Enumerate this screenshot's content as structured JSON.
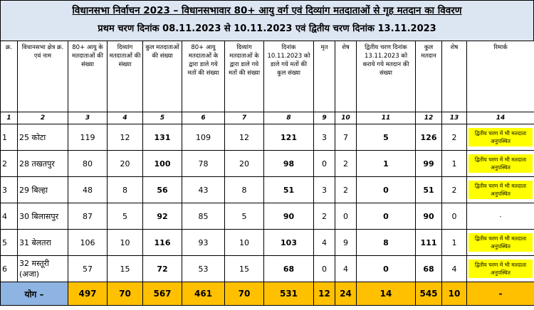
{
  "header": {
    "title": "विधानसभा निर्वाचन 2023 – विधानसभावार 80+ आयु वर्ग एवं दिव्यांग मतदाताओं से गृह मतदान का विवरण",
    "subtitle": "प्रथम चरण दिनांक 08.11.2023 से 10.11.2023 एवं द्वितीय चरण दिनांक 13.11.2023"
  },
  "table": {
    "columns": [
      "क्र.",
      "विधानसभा क्षेत्र क्र. एवं नाम",
      "80+ आयु के मतदाताओं की संख्या",
      "दिव्यांग मतदाताओं की संख्या",
      "कुल मतदाताओं की संख्या",
      "80+ आयु मतदाताओं के द्वारा डाले गये मतों की संख्या",
      "दिव्यांग मतदाताओं के द्वारा डाले गये मतों की संख्या",
      "दिनांक 10.11.2023 को डाले गये मतों की कुल संख्या",
      "मृत",
      "शेष",
      "द्वितीय चरण दिनांक 13.11.2023 को कराये गये मतदान की संख्या",
      "कुल मतदान",
      "शेष",
      "रिमार्क"
    ],
    "column_numbers": [
      1,
      2,
      3,
      4,
      5,
      6,
      7,
      8,
      9,
      10,
      11,
      12,
      13,
      14
    ],
    "rows": [
      {
        "cells": [
          1,
          "25 कोटा",
          119,
          12,
          131,
          109,
          12,
          121,
          3,
          7,
          5,
          126,
          2,
          "द्वितीय चरण में भी मतदाता अनुपस्थित"
        ],
        "remark_fill": "#ffff00"
      },
      {
        "cells": [
          2,
          "28 तखतपुर",
          80,
          20,
          100,
          78,
          20,
          98,
          0,
          2,
          1,
          99,
          1,
          "द्वितीय चरण में भी मतदाता अनुपस्थित"
        ],
        "remark_fill": "#ffff00"
      },
      {
        "cells": [
          3,
          "29 बिल्हा",
          48,
          8,
          56,
          43,
          8,
          51,
          3,
          2,
          0,
          51,
          2,
          "द्वितीय चरण में भी मतदाता अनुपस्थित"
        ],
        "remark_fill": "#ffff00"
      },
      {
        "cells": [
          4,
          "30 बिलासपुर",
          87,
          5,
          92,
          85,
          5,
          90,
          2,
          0,
          0,
          90,
          0,
          "-"
        ],
        "remark_fill": "#ffffff"
      },
      {
        "cells": [
          5,
          "31 बेलतरा",
          106,
          10,
          116,
          93,
          10,
          103,
          4,
          9,
          8,
          111,
          1,
          "द्वितीय चरण में भी मतदाता अनुपस्थित"
        ],
        "remark_fill": "#ffff00"
      },
      {
        "cells": [
          6,
          "32 मस्तूरी (अजा)",
          57,
          15,
          72,
          53,
          15,
          68,
          0,
          4,
          0,
          68,
          4,
          "द्वितीय चरण में भी मतदाता अनुपस्थित"
        ],
        "remark_fill": "#ffff00"
      }
    ],
    "total": [
      "योग –",
      497,
      70,
      567,
      461,
      70,
      531,
      12,
      24,
      14,
      545,
      10,
      "-"
    ]
  }
}
